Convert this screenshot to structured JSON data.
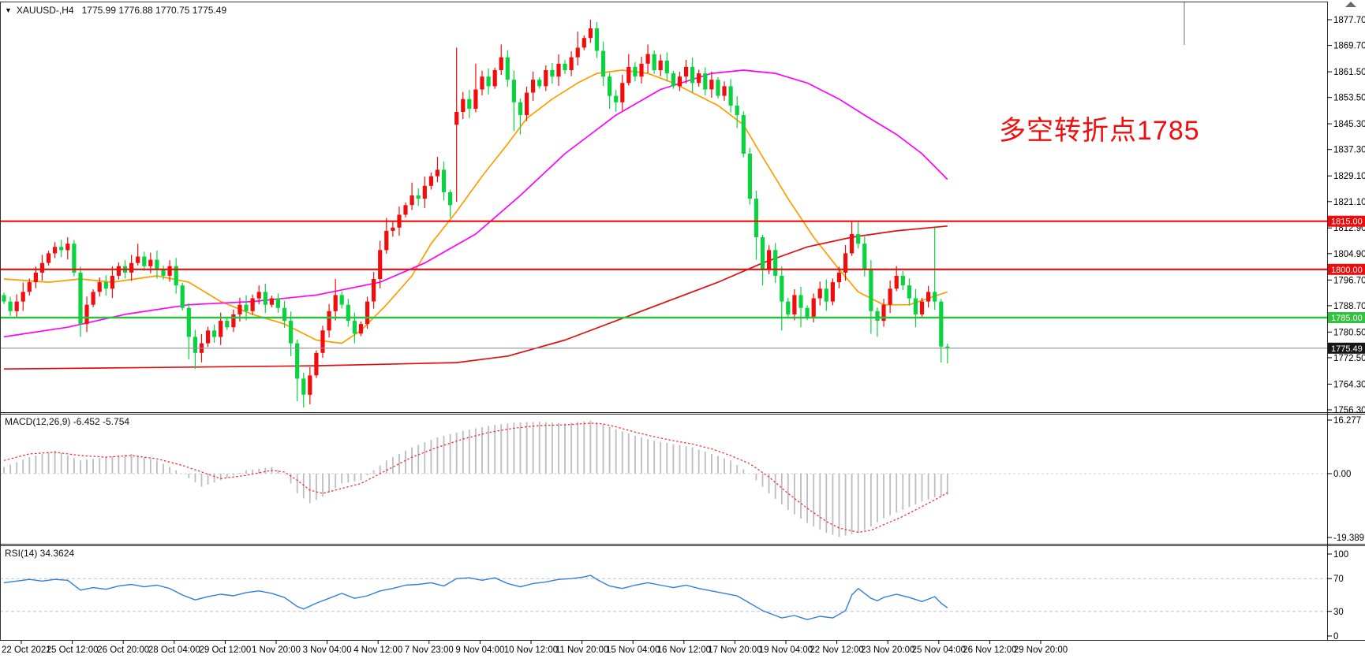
{
  "header": {
    "dropdown_icon": "▼",
    "symbol_tf": "XAUUSD-,H4",
    "ohlc": "1775.99 1776.88 1770.75 1775.49"
  },
  "annotation": {
    "text": "多空转折点1785",
    "color": "#f20d0d"
  },
  "panels": {
    "macd_label": "MACD(12,26,9) -6.452 -5.754",
    "rsi_label": "RSI(14) 34.3624"
  },
  "chart_data": {
    "type": "candlestick+indicators",
    "symbol": "XAUUSD-",
    "timeframe": "H4",
    "current_bar": {
      "open": 1775.99,
      "high": 1776.88,
      "low": 1770.75,
      "close": 1775.49
    },
    "price_axis": {
      "ticks": [
        "1877.70",
        "1869.70",
        "1861.50",
        "1853.50",
        "1845.30",
        "1837.30",
        "1829.10",
        "1821.10",
        "1812.90",
        "1804.90",
        "1796.70",
        "1788.70",
        "1780.50",
        "1772.50",
        "1764.30",
        "1756.30"
      ],
      "badges": [
        {
          "text": "1815.00",
          "price": 1815.0,
          "bg": "#ee0b0b",
          "fg": "#ffffff"
        },
        {
          "text": "1800.00",
          "price": 1800.0,
          "bg": "#ee0b0b",
          "fg": "#ffffff"
        },
        {
          "text": "1785.00",
          "price": 1785.0,
          "bg": "#33c13f",
          "fg": "#ffffff"
        },
        {
          "text": "1775.49",
          "price": 1775.49,
          "bg": "#161616",
          "fg": "#ffffff"
        }
      ]
    },
    "hlines": [
      {
        "price": 1815.0,
        "color": "#ee0b0b",
        "w": 2.2
      },
      {
        "price": 1800.0,
        "color": "#ee0b0b",
        "w": 2.2
      },
      {
        "price": 1785.0,
        "color": "#2fbf3f",
        "w": 2.6
      },
      {
        "price": 1775.49,
        "color": "#8b929c",
        "w": 1.1
      }
    ],
    "candles": {
      "up_color": "#f20c0c",
      "down_color": "#09d33e",
      "first_open": 1792,
      "closes": [
        1790,
        1787,
        1790,
        1793,
        1796,
        1799,
        1802,
        1805,
        1807,
        1806,
        1808,
        1799,
        1783,
        1789,
        1793,
        1796,
        1794,
        1798,
        1801,
        1799,
        1802,
        1804,
        1801,
        1803,
        1800,
        1798,
        1801,
        1795,
        1788,
        1779,
        1774,
        1777,
        1781,
        1779,
        1784,
        1782,
        1786,
        1789,
        1787,
        1791,
        1793,
        1789,
        1791,
        1788,
        1784,
        1777,
        1766,
        1761,
        1767,
        1774,
        1781,
        1787,
        1792,
        1789,
        1784,
        1780,
        1783,
        1790,
        1797,
        1806,
        1812,
        1813,
        1817,
        1820,
        1823,
        1822,
        1826,
        1829,
        1831,
        1824,
        1820,
        1849,
        1853,
        1850,
        1856,
        1860,
        1857,
        1862,
        1866,
        1859,
        1852,
        1848,
        1855,
        1859,
        1857,
        1862,
        1860,
        1864,
        1862,
        1866,
        1869,
        1872,
        1875,
        1868,
        1860,
        1854,
        1852,
        1858,
        1863,
        1860,
        1864,
        1867,
        1862,
        1865,
        1861,
        1857,
        1860,
        1863,
        1858,
        1861,
        1856,
        1859,
        1854,
        1857,
        1851,
        1848,
        1836,
        1822,
        1810,
        1800,
        1806,
        1798,
        1790,
        1786,
        1792,
        1788,
        1785,
        1791,
        1794,
        1790,
        1796,
        1799,
        1805,
        1811,
        1808,
        1800,
        1787,
        1784,
        1789,
        1794,
        1798,
        1795,
        1791,
        1786,
        1790,
        1793,
        1790,
        1776,
        1775.49
      ],
      "open_overrides": {
        "71": 1845
      },
      "high_overrides": {
        "10": 1810,
        "21": 1808,
        "40": 1795,
        "52": 1797,
        "60": 1816,
        "64": 1827,
        "68": 1835,
        "71": 1869,
        "74": 1864,
        "78": 1870,
        "90": 1874,
        "92": 1877.7,
        "93": 1877,
        "98": 1867,
        "101": 1870,
        "133": 1815,
        "134": 1815,
        "140": 1801,
        "146": 1813,
        "148": 1776.88
      },
      "low_overrides": {
        "12": 1779,
        "29": 1772,
        "30": 1769,
        "45": 1773,
        "46": 1759,
        "47": 1757,
        "48": 1758,
        "55": 1777,
        "70": 1816,
        "71": 1821,
        "80": 1843,
        "81": 1842,
        "95": 1850,
        "96": 1849,
        "115": 1844,
        "118": 1803,
        "119": 1795,
        "122": 1781,
        "125": 1782,
        "136": 1780,
        "137": 1779,
        "143": 1782,
        "147": 1771,
        "148": 1770.75
      }
    },
    "moving_averages": [
      {
        "name": "ma-fast-orange",
        "color": "#ff9c00",
        "w": 1.7,
        "points": [
          [
            0,
            1797
          ],
          [
            7,
            1796
          ],
          [
            12,
            1797
          ],
          [
            17,
            1796
          ],
          [
            24,
            1798
          ],
          [
            29,
            1796
          ],
          [
            34,
            1790
          ],
          [
            39,
            1786
          ],
          [
            44,
            1783
          ],
          [
            49,
            1778
          ],
          [
            53,
            1777
          ],
          [
            56,
            1781
          ],
          [
            60,
            1789
          ],
          [
            64,
            1798
          ],
          [
            67,
            1808
          ],
          [
            71,
            1818
          ],
          [
            75,
            1829
          ],
          [
            79,
            1839
          ],
          [
            82,
            1847
          ],
          [
            86,
            1853
          ],
          [
            90,
            1858
          ],
          [
            93,
            1861
          ],
          [
            97,
            1862
          ],
          [
            101,
            1861
          ],
          [
            105,
            1858
          ],
          [
            108,
            1855
          ],
          [
            112,
            1851
          ],
          [
            116,
            1845
          ],
          [
            119,
            1835
          ],
          [
            123,
            1822
          ],
          [
            127,
            1810
          ],
          [
            131,
            1800
          ],
          [
            134,
            1793
          ],
          [
            138,
            1789
          ],
          [
            142,
            1789
          ],
          [
            145,
            1791
          ],
          [
            148,
            1793
          ]
        ]
      },
      {
        "name": "ma-mid-magenta",
        "color": "#ff00ff",
        "w": 1.7,
        "points": [
          [
            0,
            1779
          ],
          [
            10,
            1782
          ],
          [
            19,
            1786
          ],
          [
            29,
            1789
          ],
          [
            39,
            1790
          ],
          [
            49,
            1792
          ],
          [
            59,
            1796
          ],
          [
            66,
            1802
          ],
          [
            74,
            1811
          ],
          [
            81,
            1823
          ],
          [
            88,
            1836
          ],
          [
            96,
            1848
          ],
          [
            103,
            1856
          ],
          [
            111,
            1861
          ],
          [
            116,
            1862
          ],
          [
            121,
            1861
          ],
          [
            126,
            1858
          ],
          [
            131,
            1853
          ],
          [
            135,
            1848
          ],
          [
            140,
            1842
          ],
          [
            144,
            1836
          ],
          [
            148,
            1828
          ]
        ]
      },
      {
        "name": "ma-slow-red",
        "color": "#e00f0f",
        "w": 1.7,
        "points": [
          [
            0,
            1769
          ],
          [
            25,
            1769.5
          ],
          [
            49,
            1770
          ],
          [
            71,
            1771
          ],
          [
            79,
            1773
          ],
          [
            88,
            1778
          ],
          [
            96,
            1784
          ],
          [
            104,
            1790
          ],
          [
            112,
            1796
          ],
          [
            119,
            1802
          ],
          [
            126,
            1807
          ],
          [
            133,
            1810
          ],
          [
            140,
            1812
          ],
          [
            148,
            1813.5
          ]
        ]
      }
    ],
    "macd": {
      "label": "MACD(12,26,9) -6.452 -5.754",
      "macd_value": -6.452,
      "signal_value": -5.754,
      "axis": [
        "16.277",
        "0.00",
        "-19.389"
      ],
      "hist_color": "#bcbcc4",
      "signal_color": "#ff1f1f",
      "hist": [
        [
          0,
          2
        ],
        [
          4,
          5
        ],
        [
          8,
          7
        ],
        [
          12,
          4
        ],
        [
          16,
          5
        ],
        [
          20,
          6
        ],
        [
          24,
          4
        ],
        [
          28,
          0
        ],
        [
          31,
          -4
        ],
        [
          34,
          -2
        ],
        [
          38,
          1
        ],
        [
          42,
          2
        ],
        [
          44,
          0
        ],
        [
          46,
          -6
        ],
        [
          48,
          -9
        ],
        [
          50,
          -7
        ],
        [
          53,
          -3
        ],
        [
          56,
          -2
        ],
        [
          58,
          1
        ],
        [
          60,
          4
        ],
        [
          64,
          8
        ],
        [
          68,
          11
        ],
        [
          72,
          13
        ],
        [
          76,
          14.5
        ],
        [
          80,
          15.5
        ],
        [
          84,
          15.8
        ],
        [
          88,
          15.2
        ],
        [
          92,
          16.1
        ],
        [
          94,
          15
        ],
        [
          96,
          13.5
        ],
        [
          99,
          11.5
        ],
        [
          102,
          10
        ],
        [
          105,
          9
        ],
        [
          108,
          8
        ],
        [
          111,
          6
        ],
        [
          114,
          4
        ],
        [
          117,
          0
        ],
        [
          120,
          -6
        ],
        [
          123,
          -11
        ],
        [
          126,
          -15
        ],
        [
          129,
          -18
        ],
        [
          131,
          -19.2
        ],
        [
          134,
          -18
        ],
        [
          136,
          -16
        ],
        [
          138,
          -13.5
        ],
        [
          141,
          -11
        ],
        [
          144,
          -8.5
        ],
        [
          146,
          -7.2
        ],
        [
          148,
          -6.45
        ]
      ],
      "signal": [
        [
          0,
          4
        ],
        [
          4,
          6
        ],
        [
          8,
          6.5
        ],
        [
          12,
          5.5
        ],
        [
          16,
          5
        ],
        [
          20,
          5.5
        ],
        [
          24,
          4.5
        ],
        [
          28,
          2.5
        ],
        [
          31,
          0.5
        ],
        [
          34,
          -1.5
        ],
        [
          38,
          -0.5
        ],
        [
          42,
          1
        ],
        [
          44,
          0.5
        ],
        [
          46,
          -2
        ],
        [
          48,
          -5
        ],
        [
          50,
          -6
        ],
        [
          53,
          -4.5
        ],
        [
          56,
          -3
        ],
        [
          58,
          -1
        ],
        [
          60,
          1
        ],
        [
          64,
          5
        ],
        [
          68,
          8
        ],
        [
          72,
          10.5
        ],
        [
          76,
          12.5
        ],
        [
          80,
          13.8
        ],
        [
          84,
          14.6
        ],
        [
          88,
          14.8
        ],
        [
          92,
          15.3
        ],
        [
          94,
          15.1
        ],
        [
          96,
          14.2
        ],
        [
          99,
          12.6
        ],
        [
          102,
          11.2
        ],
        [
          105,
          10
        ],
        [
          108,
          9
        ],
        [
          111,
          7.5
        ],
        [
          114,
          5.5
        ],
        [
          117,
          3
        ],
        [
          120,
          -1
        ],
        [
          123,
          -6
        ],
        [
          126,
          -10.5
        ],
        [
          129,
          -14.5
        ],
        [
          131,
          -16.5
        ],
        [
          134,
          -17.8
        ],
        [
          136,
          -17.2
        ],
        [
          138,
          -15.5
        ],
        [
          141,
          -13
        ],
        [
          144,
          -10
        ],
        [
          146,
          -8
        ],
        [
          148,
          -5.754
        ]
      ]
    },
    "rsi": {
      "label": "RSI(14) 34.3624",
      "value": 34.3624,
      "axis": [
        "100",
        "70",
        "30",
        "0"
      ],
      "levels": [
        70,
        30
      ],
      "color": "#2f7ee0",
      "level_color": "#b9c3cf",
      "points": [
        [
          0,
          65
        ],
        [
          2,
          67
        ],
        [
          4,
          69
        ],
        [
          6,
          67
        ],
        [
          8,
          69
        ],
        [
          10,
          68
        ],
        [
          12,
          56
        ],
        [
          14,
          59
        ],
        [
          16,
          57
        ],
        [
          18,
          61
        ],
        [
          20,
          63
        ],
        [
          22,
          60
        ],
        [
          24,
          62
        ],
        [
          26,
          58
        ],
        [
          28,
          50
        ],
        [
          30,
          44
        ],
        [
          32,
          48
        ],
        [
          34,
          51
        ],
        [
          36,
          49
        ],
        [
          38,
          53
        ],
        [
          40,
          55
        ],
        [
          42,
          52
        ],
        [
          44,
          47
        ],
        [
          46,
          36
        ],
        [
          47,
          33
        ],
        [
          49,
          40
        ],
        [
          51,
          46
        ],
        [
          53,
          52
        ],
        [
          55,
          46
        ],
        [
          57,
          49
        ],
        [
          59,
          55
        ],
        [
          61,
          58
        ],
        [
          63,
          62
        ],
        [
          65,
          63
        ],
        [
          67,
          65
        ],
        [
          69,
          61
        ],
        [
          71,
          70
        ],
        [
          73,
          71
        ],
        [
          75,
          68
        ],
        [
          77,
          71
        ],
        [
          79,
          64
        ],
        [
          81,
          60
        ],
        [
          83,
          64
        ],
        [
          85,
          66
        ],
        [
          87,
          69
        ],
        [
          89,
          70
        ],
        [
          91,
          72
        ],
        [
          92,
          74
        ],
        [
          93,
          69
        ],
        [
          95,
          61
        ],
        [
          97,
          58
        ],
        [
          99,
          62
        ],
        [
          101,
          65
        ],
        [
          103,
          62
        ],
        [
          105,
          59
        ],
        [
          107,
          62
        ],
        [
          109,
          58
        ],
        [
          111,
          55
        ],
        [
          113,
          52
        ],
        [
          115,
          49
        ],
        [
          117,
          40
        ],
        [
          119,
          31
        ],
        [
          121,
          25
        ],
        [
          122,
          22
        ],
        [
          124,
          25
        ],
        [
          126,
          20
        ],
        [
          128,
          24
        ],
        [
          130,
          22
        ],
        [
          132,
          31
        ],
        [
          133,
          50
        ],
        [
          134,
          58
        ],
        [
          135,
          52
        ],
        [
          136,
          46
        ],
        [
          137,
          43
        ],
        [
          138,
          47
        ],
        [
          140,
          51
        ],
        [
          142,
          47
        ],
        [
          144,
          42
        ],
        [
          146,
          48
        ],
        [
          147,
          40
        ],
        [
          148,
          34.36
        ]
      ]
    },
    "time_axis": {
      "labels": [
        "22 Oct 2021",
        "25 Oct 12:00",
        "26 Oct 20:00",
        "28 Oct 04:00",
        "29 Oct 12:00",
        "1 Nov 20:00",
        "3 Nov 04:00",
        "4 Nov 12:00",
        "7 Nov 23:00",
        "9 Nov 04:00",
        "10 Nov 12:00",
        "11 Nov 20:00",
        "15 Nov 04:00",
        "16 Nov 12:00",
        "17 Nov 20:00",
        "19 Nov 04:00",
        "22 Nov 12:00",
        "23 Nov 20:00",
        "25 Nov 04:00",
        "26 Nov 12:00",
        "29 Nov 20:00"
      ]
    }
  }
}
